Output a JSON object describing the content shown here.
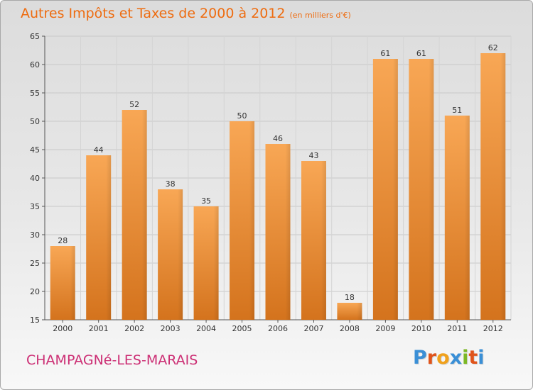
{
  "header": {
    "title": "Autres Impôts et Taxes de 2000 à 2012",
    "subtitle": "(en milliers d'€)"
  },
  "footer": {
    "commune": "CHAMPAGNé-LES-MARAIS",
    "brand_letters": [
      "P",
      "r",
      "o",
      "x",
      "i",
      "t",
      "i"
    ],
    "brand_colors": [
      "#3a8fd6",
      "#e0541b",
      "#f0a11c",
      "#3a8fd6",
      "#7cb824",
      "#e0541b",
      "#3a8fd6"
    ]
  },
  "colors": {
    "accent": "#ee6c10",
    "commune": "#cc2e74",
    "bar_light": "#f8a755",
    "bar_dark": "#d4731d"
  },
  "chart_data": {
    "type": "bar",
    "title": "Autres Impôts et Taxes de 2000 à 2012",
    "subtitle": "(en milliers d'€)",
    "xlabel": "",
    "ylabel": "",
    "categories": [
      "2000",
      "2001",
      "2002",
      "2003",
      "2004",
      "2005",
      "2006",
      "2007",
      "2008",
      "2009",
      "2010",
      "2011",
      "2012"
    ],
    "values": [
      28,
      44,
      52,
      38,
      35,
      50,
      46,
      43,
      18,
      61,
      61,
      51,
      62
    ],
    "ylim": [
      15,
      65
    ],
    "yticks": [
      15,
      20,
      25,
      30,
      35,
      40,
      45,
      50,
      55,
      60,
      65
    ],
    "grid": true,
    "legend": "none"
  }
}
